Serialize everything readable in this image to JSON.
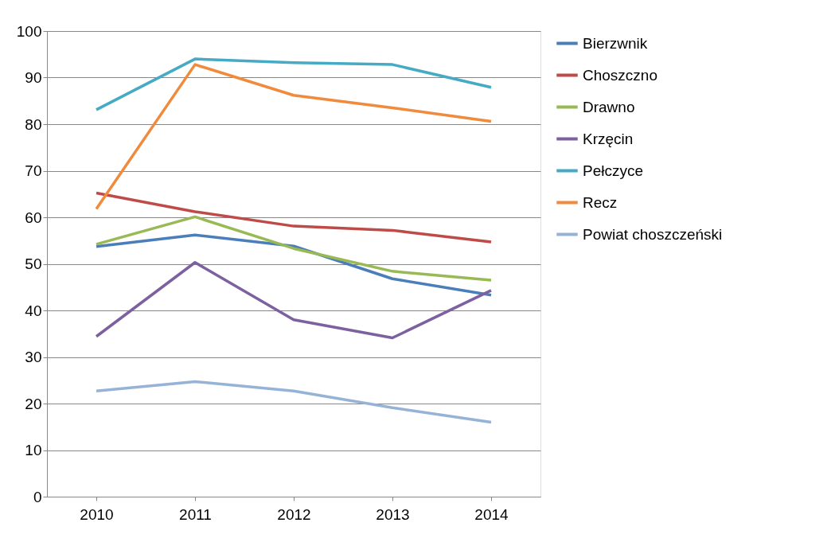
{
  "chart_data": {
    "type": "line",
    "categories": [
      "2010",
      "2011",
      "2012",
      "2013",
      "2014"
    ],
    "series": [
      {
        "name": "Bierzwnik",
        "color": "#4a7ebb",
        "values": [
          53.7,
          56.2,
          53.8,
          46.8,
          43.3
        ]
      },
      {
        "name": "Choszczno",
        "color": "#be4b48",
        "values": [
          65.2,
          61.2,
          58.1,
          57.2,
          54.7
        ]
      },
      {
        "name": "Drawno",
        "color": "#98b954",
        "values": [
          54.2,
          60.1,
          53.3,
          48.4,
          46.5
        ]
      },
      {
        "name": "Krzęcin",
        "color": "#7d60a0",
        "values": [
          34.4,
          50.3,
          38.0,
          34.1,
          44.3
        ]
      },
      {
        "name": "Pełczyce",
        "color": "#46aac5",
        "values": [
          83.1,
          94.0,
          93.2,
          92.8,
          87.9
        ]
      },
      {
        "name": "Recz",
        "color": "#f08a3c",
        "values": [
          61.8,
          92.8,
          86.2,
          83.5,
          80.6
        ]
      },
      {
        "name": "Powiat choszczeński",
        "color": "#95b3d7",
        "values": [
          22.7,
          24.7,
          22.7,
          19.1,
          16.0
        ]
      }
    ],
    "ylim": [
      0,
      100
    ],
    "yticks": [
      0,
      10,
      20,
      30,
      40,
      50,
      60,
      70,
      80,
      90,
      100
    ],
    "grid": "y",
    "legend": "right",
    "marker": "none",
    "line_style": "solid"
  }
}
